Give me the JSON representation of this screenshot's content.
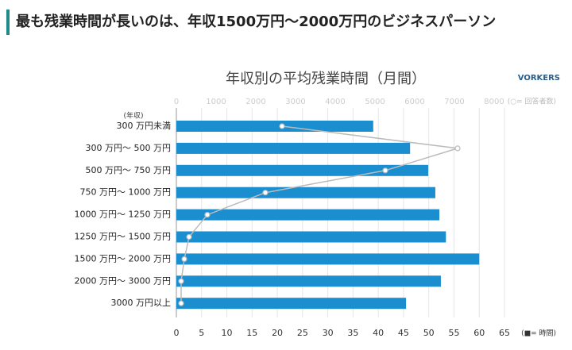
{
  "header": {
    "title": "最も残業時間が長いのは、年収1500万円～2000万円のビジネスパーソン"
  },
  "chart_data": {
    "type": "bar",
    "orientation": "horizontal",
    "title": "年収別の平均残業時間（月間）",
    "brand": "VORKERS",
    "category_axis_label": "(年収)",
    "categories": [
      "300 万円未満",
      "300 万円～ 500 万円",
      "500 万円～ 750 万円",
      "750 万円～ 1000 万円",
      "1000 万円～ 1250 万円",
      "1250 万円～ 1500 万円",
      "1500 万円～ 2000 万円",
      "2000 万円～ 3000 万円",
      "3000 万円以上"
    ],
    "series": [
      {
        "name": "(■= 時間)",
        "type": "bar",
        "color": "#1b8ed0",
        "values": [
          39,
          46.3,
          49.9,
          51.3,
          52.1,
          53.4,
          60,
          52.4,
          45.5
        ]
      },
      {
        "name": "(○= 回答者数)",
        "type": "line",
        "axis": "x2",
        "color": "#bbbbbb",
        "values": [
          2660,
          7080,
          5260,
          2240,
          780,
          320,
          200,
          120,
          120
        ]
      }
    ],
    "xlim": [
      0,
      65
    ],
    "xticks": [
      0,
      5,
      10,
      15,
      20,
      25,
      30,
      35,
      40,
      45,
      50,
      55,
      60,
      65
    ],
    "x2lim": [
      0,
      8000
    ],
    "x2ticks": [
      0,
      1000,
      2000,
      3000,
      4000,
      5000,
      6000,
      7000,
      8000
    ],
    "grid": true
  }
}
